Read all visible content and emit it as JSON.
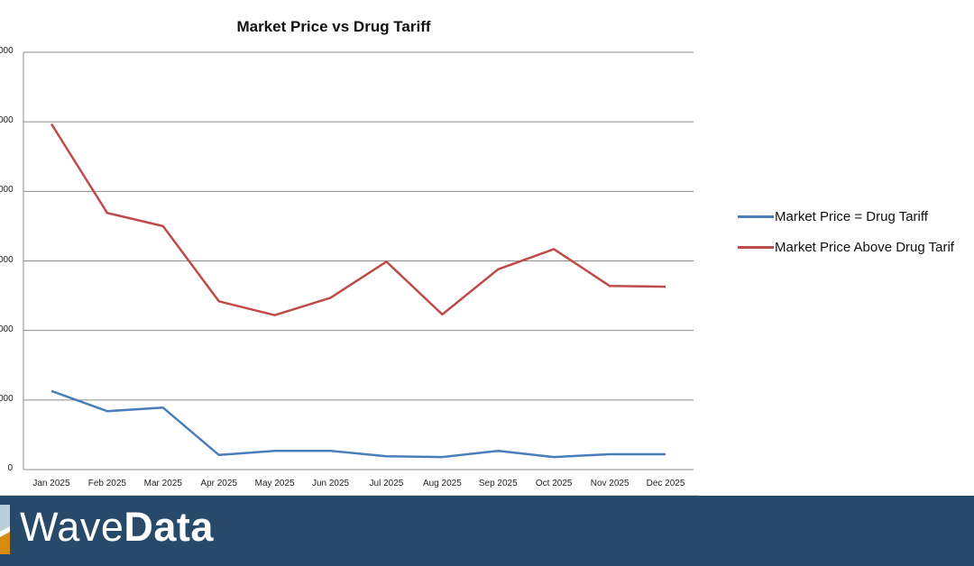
{
  "chart_data": {
    "type": "line",
    "title": "Market Price vs Drug Tariff",
    "xlabel": "",
    "ylabel": "",
    "categories": [
      "Jan 2025",
      "Feb 2025",
      "Mar 2025",
      "Apr 2025",
      "May 2025",
      "Jun 2025",
      "Jul 2025",
      "Aug 2025",
      "Sep 2025",
      "Oct 2025",
      "Nov 2025",
      "Dec 2025"
    ],
    "y_tick_labels": [
      "0",
      "000",
      "000",
      "000",
      "000",
      "000",
      "000"
    ],
    "y_units_note": "values in gridline units (leading digits of y tick labels are clipped)",
    "ylim": [
      0,
      6
    ],
    "grid": true,
    "legend_position": "right",
    "series": [
      {
        "name": "Market Price = Drug Tariff",
        "color": "#4a7ebb",
        "values": [
          1.13,
          0.84,
          0.89,
          0.21,
          0.27,
          0.27,
          0.19,
          0.18,
          0.27,
          0.18,
          0.22,
          0.22
        ]
      },
      {
        "name": "Market Price Above Drug Tariff",
        "color": "#be4b48",
        "values": [
          4.97,
          3.69,
          3.5,
          2.42,
          2.22,
          2.47,
          2.99,
          2.23,
          2.88,
          3.17,
          2.64,
          2.63
        ]
      }
    ]
  },
  "legend": {
    "items": [
      {
        "label": "Market Price = Drug Tariff",
        "color": "#4a7ebb"
      },
      {
        "label": "Market Price Above Drug Tarif",
        "color": "#be4b48"
      }
    ]
  },
  "footer": {
    "brand_light": "Wave",
    "brand_bold": "Data",
    "background": "#274a6a"
  }
}
